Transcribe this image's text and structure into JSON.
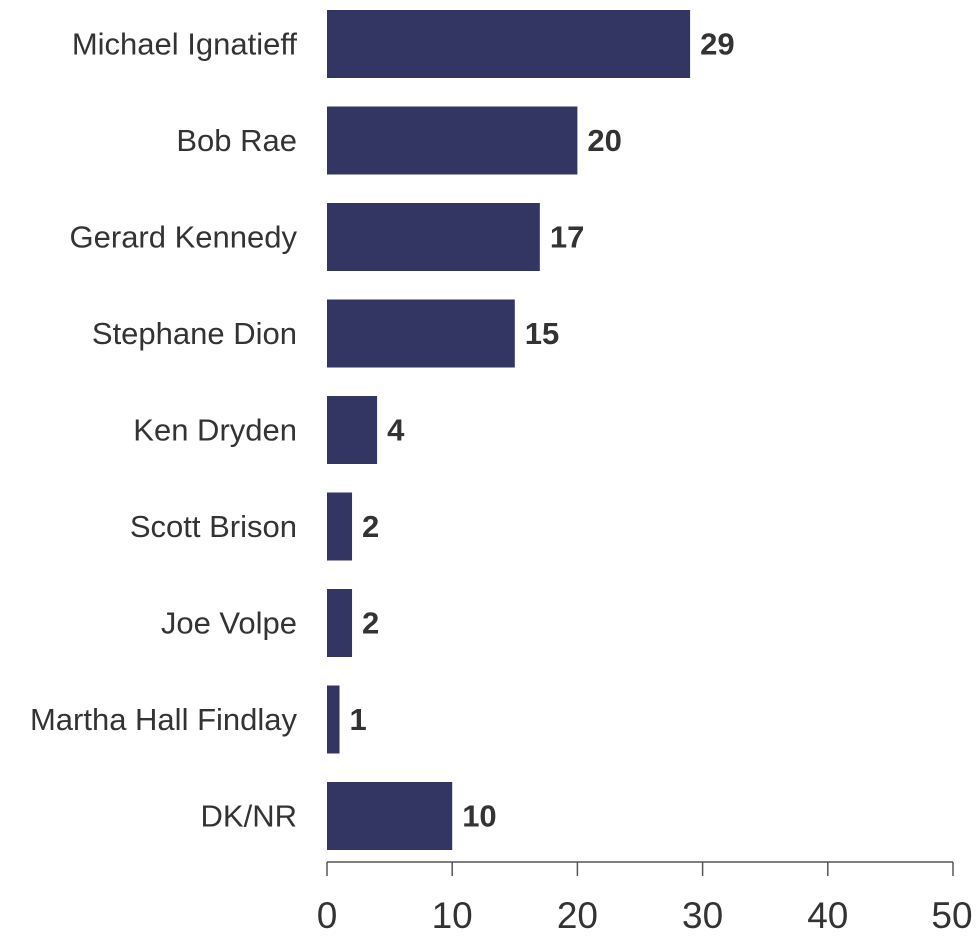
{
  "chart_data": {
    "type": "bar",
    "orientation": "horizontal",
    "categories": [
      "Michael Ignatieff",
      "Bob Rae",
      "Gerard Kennedy",
      "Stephane Dion",
      "Ken Dryden",
      "Scott Brison",
      "Joe Volpe",
      "Martha Hall Findlay",
      "DK/NR"
    ],
    "values": [
      29,
      20,
      17,
      15,
      4,
      2,
      2,
      1,
      10
    ],
    "value_labels": [
      "29",
      "20",
      "17",
      "15",
      "4",
      "2",
      "2",
      "1",
      "10"
    ],
    "xlim": [
      0,
      50
    ],
    "xticks": [
      0,
      10,
      20,
      30,
      40,
      50
    ],
    "xtick_labels": [
      "0",
      "10",
      "20",
      "30",
      "40",
      "50"
    ],
    "title": "",
    "xlabel": "",
    "ylabel": "",
    "grid": false,
    "legend": "none",
    "bar_color": "#333663",
    "text_color": "#333333",
    "axis_color": "#555555"
  }
}
